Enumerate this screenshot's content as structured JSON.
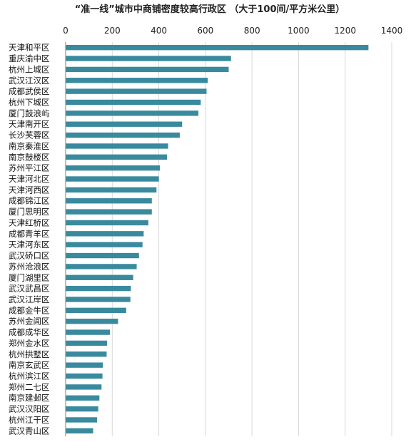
{
  "chart_data": {
    "type": "bar",
    "orientation": "horizontal",
    "title": "“准一线”城市中商铺密度较高行政区 （大于100间/平方米公里）",
    "xlim": [
      0,
      1400
    ],
    "xticks": [
      0,
      200,
      400,
      600,
      800,
      1000,
      1200,
      1400
    ],
    "x_axis_position": "top",
    "grid": true,
    "bar_color": "#3a8a9e",
    "categories": [
      "天津和平区",
      "重庆渝中区",
      "杭州上城区",
      "武汉江汉区",
      "成都武侯区",
      "杭州下城区",
      "厦门鼓浪屿",
      "天津南开区",
      "长沙芙蓉区",
      "南京秦淮区",
      "南京鼓楼区",
      "苏州平江区",
      "天津河北区",
      "天津河西区",
      "成都锦江区",
      "厦门思明区",
      "天津红桥区",
      "成都青羊区",
      "天津河东区",
      "武汉硚口区",
      "苏州沧浪区",
      "厦门湖里区",
      "武汉武昌区",
      "武汉江岸区",
      "成都金牛区",
      "苏州金阊区",
      "成都成华区",
      "郑州金水区",
      "杭州拱墅区",
      "南京玄武区",
      "杭州滨江区",
      "郑州二七区",
      "南京建邺区",
      "武汉汉阳区",
      "杭州江干区",
      "武汉青山区"
    ],
    "values": [
      1300,
      710,
      700,
      610,
      605,
      580,
      570,
      500,
      490,
      440,
      435,
      405,
      400,
      390,
      370,
      370,
      355,
      335,
      330,
      315,
      305,
      290,
      280,
      278,
      260,
      225,
      190,
      178,
      176,
      160,
      158,
      154,
      145,
      140,
      135,
      118
    ]
  }
}
